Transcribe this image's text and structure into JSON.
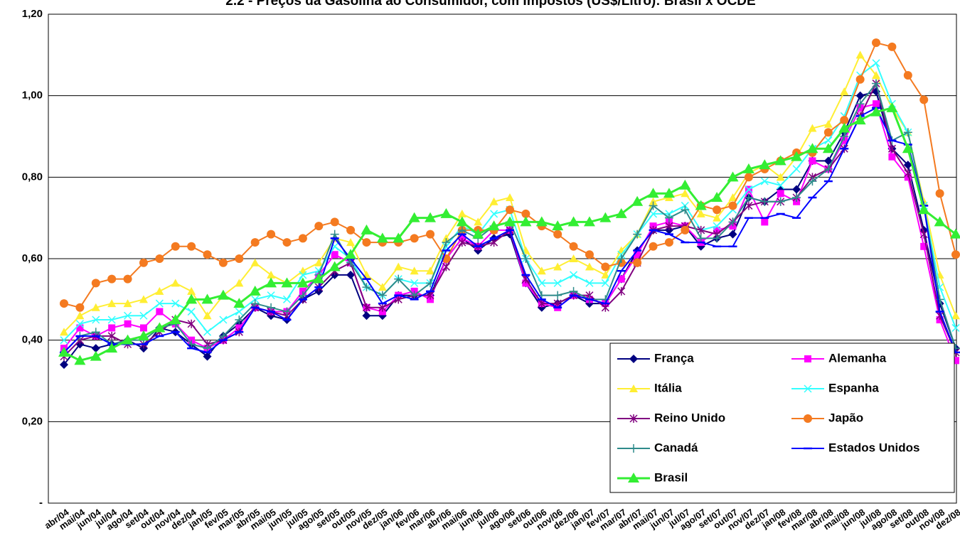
{
  "chart_data": {
    "type": "line",
    "title": "2.2 - Preços da Gasolina ao Consumidor, com Impostos (US$/Litro): Brasil x OCDE",
    "categories": [
      "abr/04",
      "mai/04",
      "jun/04",
      "jul/04",
      "ago/04",
      "set/04",
      "out/04",
      "nov/04",
      "dez/04",
      "jan/05",
      "fev/05",
      "mar/05",
      "abr/05",
      "mai/05",
      "jun/05",
      "jul/05",
      "ago/05",
      "set/05",
      "out/05",
      "nov/05",
      "dez/05",
      "jan/06",
      "fev/06",
      "mar/06",
      "abr/06",
      "mai/06",
      "jun/06",
      "jul/06",
      "ago/06",
      "set/06",
      "out/06",
      "nov/06",
      "dez/06",
      "jan/07",
      "fev/07",
      "mar/07",
      "abr/07",
      "mai/07",
      "jun/07",
      "jul/07",
      "ago/07",
      "set/07",
      "out/07",
      "nov/07",
      "dez/07",
      "jan/08",
      "fev/08",
      "mar/08",
      "abr/08",
      "mai/08",
      "jun/08",
      "jul/08",
      "ago/08",
      "set/08",
      "out/08",
      "nov/08",
      "dez/08"
    ],
    "ylim": [
      0,
      1.2
    ],
    "yticks": [
      {
        "value": 0,
        "label": "-"
      },
      {
        "value": 0.2,
        "label": "0,20"
      },
      {
        "value": 0.4,
        "label": "0,40"
      },
      {
        "value": 0.6,
        "label": "0,60"
      },
      {
        "value": 0.8,
        "label": "0,80"
      },
      {
        "value": 1.0,
        "label": "1,00"
      },
      {
        "value": 1.2,
        "label": "1,20"
      }
    ],
    "grid": true,
    "legend": "bottom-right",
    "series": [
      {
        "name": "França",
        "color": "#000080",
        "marker": "diamond",
        "values": [
          0.34,
          0.39,
          0.38,
          0.39,
          0.4,
          0.38,
          0.43,
          0.42,
          0.39,
          0.36,
          0.41,
          0.44,
          0.48,
          0.46,
          0.45,
          0.5,
          0.52,
          0.56,
          0.56,
          0.46,
          0.46,
          0.51,
          0.51,
          0.51,
          0.6,
          0.65,
          0.62,
          0.65,
          0.66,
          0.54,
          0.48,
          0.49,
          0.51,
          0.49,
          0.49,
          0.55,
          0.62,
          0.67,
          0.67,
          0.68,
          0.63,
          0.65,
          0.66,
          0.75,
          0.74,
          0.77,
          0.77,
          0.84,
          0.84,
          0.91,
          1.0,
          1.01,
          0.87,
          0.83,
          0.67,
          0.49,
          0.38
        ]
      },
      {
        "name": "Alemanha",
        "color": "#ff00ff",
        "marker": "square",
        "values": [
          0.38,
          0.43,
          0.41,
          0.43,
          0.44,
          0.43,
          0.47,
          0.44,
          0.4,
          0.38,
          0.4,
          0.43,
          0.48,
          0.47,
          0.47,
          0.52,
          0.56,
          0.61,
          0.59,
          0.48,
          0.47,
          0.51,
          0.52,
          0.5,
          0.6,
          0.65,
          0.63,
          0.67,
          0.67,
          0.54,
          0.49,
          0.48,
          0.51,
          0.5,
          0.49,
          0.55,
          0.61,
          0.68,
          0.69,
          0.68,
          0.64,
          0.67,
          0.68,
          0.77,
          0.69,
          0.76,
          0.74,
          0.84,
          0.82,
          0.89,
          0.97,
          0.98,
          0.85,
          0.8,
          0.63,
          0.45,
          0.35
        ]
      },
      {
        "name": "Itália",
        "color": "#ffee33",
        "marker": "triangle",
        "values": [
          0.42,
          0.46,
          0.48,
          0.49,
          0.49,
          0.5,
          0.52,
          0.54,
          0.52,
          0.46,
          0.51,
          0.54,
          0.59,
          0.56,
          0.54,
          0.57,
          0.59,
          0.65,
          0.64,
          0.56,
          0.53,
          0.58,
          0.57,
          0.57,
          0.65,
          0.71,
          0.69,
          0.74,
          0.75,
          0.62,
          0.57,
          0.58,
          0.6,
          0.58,
          0.56,
          0.62,
          0.66,
          0.74,
          0.75,
          0.76,
          0.71,
          0.7,
          0.75,
          0.81,
          0.83,
          0.8,
          0.85,
          0.92,
          0.93,
          1.01,
          1.1,
          1.05,
          0.97,
          0.91,
          0.74,
          0.56,
          0.46
        ]
      },
      {
        "name": "Espanha",
        "color": "#33ffff",
        "marker": "x",
        "values": [
          0.4,
          0.44,
          0.45,
          0.45,
          0.46,
          0.46,
          0.49,
          0.49,
          0.47,
          0.42,
          0.45,
          0.47,
          0.5,
          0.51,
          0.5,
          0.56,
          0.57,
          0.63,
          0.6,
          0.53,
          0.51,
          0.55,
          0.54,
          0.54,
          0.63,
          0.68,
          0.66,
          0.71,
          0.72,
          0.6,
          0.54,
          0.54,
          0.56,
          0.54,
          0.54,
          0.61,
          0.66,
          0.71,
          0.71,
          0.73,
          0.67,
          0.68,
          0.72,
          0.77,
          0.79,
          0.78,
          0.82,
          0.87,
          0.89,
          0.95,
          1.05,
          1.08,
          0.98,
          0.91,
          0.73,
          0.53,
          0.43
        ]
      },
      {
        "name": "Reino Unido",
        "color": "#800080",
        "marker": "star",
        "values": [
          0.36,
          0.4,
          0.41,
          0.41,
          0.39,
          0.39,
          0.42,
          0.45,
          0.44,
          0.39,
          0.4,
          0.42,
          0.48,
          0.47,
          0.46,
          0.5,
          0.53,
          0.57,
          0.59,
          0.48,
          0.48,
          0.5,
          0.51,
          0.51,
          0.58,
          0.64,
          0.63,
          0.64,
          0.67,
          0.55,
          0.49,
          0.49,
          0.51,
          0.51,
          0.48,
          0.52,
          0.59,
          0.67,
          0.68,
          0.68,
          0.67,
          0.66,
          0.69,
          0.73,
          0.74,
          0.74,
          0.75,
          0.8,
          0.82,
          0.87,
          0.95,
          1.03,
          0.87,
          0.81,
          0.66,
          0.46,
          0.37
        ]
      },
      {
        "name": "Japão",
        "color": "#f47a20",
        "marker": "circle",
        "values": [
          0.49,
          0.48,
          0.54,
          0.55,
          0.55,
          0.59,
          0.6,
          0.63,
          0.63,
          0.61,
          0.59,
          0.6,
          0.64,
          0.66,
          0.64,
          0.65,
          0.68,
          0.69,
          0.67,
          0.64,
          0.64,
          0.64,
          0.65,
          0.66,
          0.6,
          0.67,
          0.67,
          0.67,
          0.72,
          0.71,
          0.68,
          0.66,
          0.63,
          0.61,
          0.58,
          0.59,
          0.59,
          0.63,
          0.64,
          0.67,
          0.73,
          0.72,
          0.73,
          0.8,
          0.82,
          0.84,
          0.86,
          0.86,
          0.91,
          0.94,
          1.04,
          1.13,
          1.12,
          1.05,
          0.99,
          0.76,
          0.61
        ]
      },
      {
        "name": "Canadá",
        "color": "#2e8b8b",
        "marker": "plus",
        "values": [
          0.37,
          0.41,
          0.42,
          0.39,
          0.4,
          0.4,
          0.43,
          0.44,
          0.39,
          0.38,
          0.41,
          0.45,
          0.49,
          0.48,
          0.47,
          0.51,
          0.56,
          0.66,
          0.59,
          0.53,
          0.51,
          0.55,
          0.51,
          0.54,
          0.64,
          0.67,
          0.65,
          0.68,
          0.69,
          0.6,
          0.51,
          0.51,
          0.52,
          0.5,
          0.5,
          0.6,
          0.66,
          0.73,
          0.7,
          0.72,
          0.65,
          0.65,
          0.69,
          0.75,
          0.74,
          0.74,
          0.75,
          0.79,
          0.82,
          0.9,
          0.98,
          1.03,
          0.89,
          0.91,
          0.73,
          0.5,
          0.38
        ]
      },
      {
        "name": "Estados Unidos",
        "color": "#0000ff",
        "marker": "dash",
        "values": [
          0.37,
          0.41,
          0.41,
          0.39,
          0.39,
          0.39,
          0.41,
          0.42,
          0.38,
          0.37,
          0.4,
          0.42,
          0.48,
          0.47,
          0.45,
          0.5,
          0.53,
          0.65,
          0.6,
          0.55,
          0.49,
          0.51,
          0.5,
          0.52,
          0.62,
          0.66,
          0.63,
          0.65,
          0.67,
          0.56,
          0.5,
          0.48,
          0.51,
          0.5,
          0.49,
          0.57,
          0.62,
          0.67,
          0.66,
          0.64,
          0.64,
          0.63,
          0.63,
          0.7,
          0.7,
          0.71,
          0.7,
          0.75,
          0.79,
          0.87,
          0.95,
          0.97,
          0.89,
          0.88,
          0.73,
          0.47,
          0.37
        ]
      },
      {
        "name": "Brasil",
        "color": "#33ee33",
        "marker": "bigtriangle",
        "values": [
          0.37,
          0.35,
          0.36,
          0.38,
          0.4,
          0.41,
          0.43,
          0.45,
          0.5,
          0.5,
          0.51,
          0.49,
          0.52,
          0.54,
          0.54,
          0.54,
          0.55,
          0.58,
          0.61,
          0.67,
          0.65,
          0.65,
          0.7,
          0.7,
          0.71,
          0.69,
          0.66,
          0.68,
          0.69,
          0.69,
          0.69,
          0.68,
          0.69,
          0.69,
          0.7,
          0.71,
          0.74,
          0.76,
          0.76,
          0.78,
          0.73,
          0.75,
          0.8,
          0.82,
          0.83,
          0.84,
          0.85,
          0.87,
          0.87,
          0.92,
          0.94,
          0.96,
          0.97,
          0.87,
          0.72,
          0.69,
          0.66
        ]
      }
    ]
  }
}
